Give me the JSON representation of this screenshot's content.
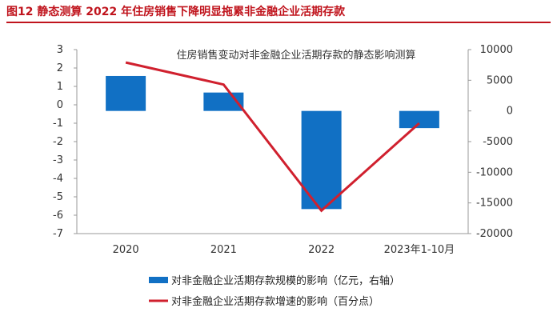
{
  "figure_title": "图12  静态测算 2022 年住房销售下降明显拖累非金融企业活期存款",
  "chart_data": {
    "type": "bar",
    "title": "住房销售变动对非金融企业活期存款的静态影响测算",
    "categories": [
      "2020",
      "2021",
      "2022",
      "2023年1-10月"
    ],
    "series": [
      {
        "name": "对非金融企业活期存款规模的影响（亿元，右轴）",
        "type": "bar",
        "axis": "right",
        "values": [
          5700,
          3000,
          -16000,
          -2800
        ],
        "color": "#1170c4"
      },
      {
        "name": "对非金融企业活期存款增速的影响（百分点）",
        "type": "line",
        "axis": "left",
        "values": [
          2.3,
          1.1,
          -5.75,
          -1.0
        ],
        "color": "#d0202e"
      }
    ],
    "left_axis": {
      "ylim": [
        -7,
        3
      ],
      "ticks": [
        "3",
        "2",
        "1",
        "0",
        "-1",
        "-2",
        "-3",
        "-4",
        "-5",
        "-6",
        "-7"
      ]
    },
    "right_axis": {
      "ylim": [
        -20000,
        10000
      ],
      "ticks": [
        "10000",
        "5000",
        "0",
        "-5000",
        "-10000",
        "-15000",
        "-20000"
      ]
    },
    "grid": false,
    "legend_position": "bottom"
  }
}
